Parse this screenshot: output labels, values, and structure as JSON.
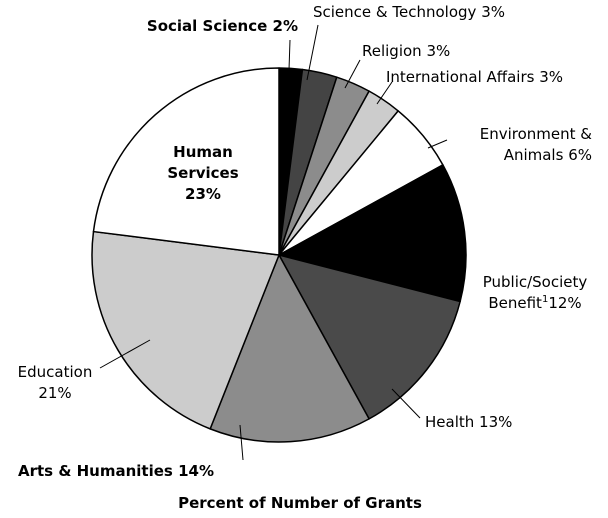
{
  "chart_data": {
    "type": "pie",
    "title": "Percent of Number of Grants",
    "categories": [
      "Social Science",
      "Science & Technology",
      "Religion",
      "International Affairs",
      "Environment & Animals",
      "Public/Society Benefit",
      "Health",
      "Arts & Humanities",
      "Education",
      "Human Services"
    ],
    "category_notes": [
      null,
      null,
      null,
      null,
      null,
      "1",
      null,
      null,
      null,
      null
    ],
    "values": [
      2,
      3,
      3,
      3,
      6,
      12,
      13,
      14,
      21,
      23
    ],
    "value_labels": [
      "2%",
      "3%",
      "3%",
      "3%",
      "6%",
      "12%",
      "13%",
      "14%",
      "21%",
      "23%"
    ],
    "colors": [
      "#000000",
      "#444444",
      "#8c8c8c",
      "#cccccc",
      "#ffffff",
      "#000000",
      "#4a4a4a",
      "#8c8c8c",
      "#cccccc",
      "#ffffff"
    ]
  }
}
